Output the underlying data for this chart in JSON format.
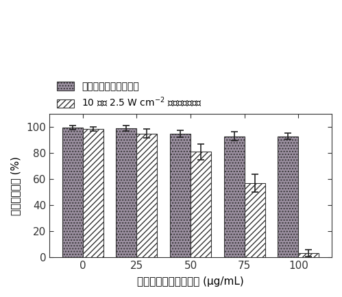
{
  "categories": [
    0,
    25,
    50,
    75,
    100
  ],
  "bar1_values": [
    99.5,
    99.0,
    95.0,
    93.0,
    93.0
  ],
  "bar2_values": [
    98.5,
    95.0,
    81.0,
    57.0,
    3.0
  ],
  "bar1_errors": [
    1.5,
    2.0,
    2.5,
    3.5,
    2.5
  ],
  "bar2_errors": [
    1.5,
    3.5,
    6.0,
    7.0,
    2.5
  ],
  "bar1_color": "#9b8fa0",
  "bar2_color": "#ffffff",
  "bar1_hatch": "....",
  "bar2_hatch": "////",
  "bar_width": 0.38,
  "xlabel": "二硫化钼纳米片层浓度 (μg/mL)",
  "ylabel": "癌细胞存活率 (%)",
  "ylim": [
    0,
    110
  ],
  "yticks": [
    0,
    20,
    40,
    60,
    80,
    100
  ],
  "legend1": "未进行近红外光热治疗",
  "legend2": "10 分钟 2.5 W cm$^{-2}$ 近红外光热治疗",
  "axis_fontsize": 11,
  "tick_fontsize": 11,
  "legend_fontsize": 10,
  "edge_color": "#333333",
  "error_color": "#222222",
  "background_color": "#ffffff",
  "hatch_color": "#777777"
}
